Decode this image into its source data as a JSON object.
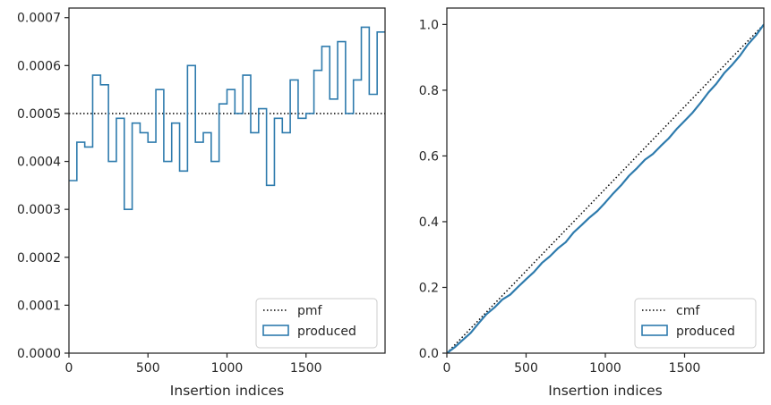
{
  "chart_data": [
    {
      "type": "step",
      "xlabel": "Insertion indices",
      "ylabel": "",
      "xlim": [
        0,
        2000
      ],
      "ylim": [
        0,
        0.00072
      ],
      "xticks": [
        "0",
        "500",
        "1000",
        "1500"
      ],
      "xtick_values": [
        0,
        500,
        1000,
        1500
      ],
      "yticks": [
        "0.0000",
        "0.0001",
        "0.0002",
        "0.0003",
        "0.0004",
        "0.0005",
        "0.0006",
        "0.0007"
      ],
      "ytick_values": [
        0,
        0.0001,
        0.0002,
        0.0003,
        0.0004,
        0.0005,
        0.0006,
        0.0007
      ],
      "legend_position": "lower-right",
      "series": [
        {
          "name": "pmf",
          "kind": "reference-line",
          "style": "dotted",
          "color": "#000000",
          "y": 0.0005
        },
        {
          "name": "produced",
          "kind": "histogram-step",
          "color": "#2e7bad",
          "bin_width": 50,
          "bin_starts": [
            0,
            50,
            100,
            150,
            200,
            250,
            300,
            350,
            400,
            450,
            500,
            550,
            600,
            650,
            700,
            750,
            800,
            850,
            900,
            950,
            1000,
            1050,
            1100,
            1150,
            1200,
            1250,
            1300,
            1350,
            1400,
            1450,
            1500,
            1550,
            1600,
            1650,
            1700,
            1750,
            1800,
            1850,
            1900,
            1950
          ],
          "values": [
            0.00036,
            0.00044,
            0.00043,
            0.00058,
            0.00056,
            0.0004,
            0.00049,
            0.0003,
            0.00048,
            0.00046,
            0.00044,
            0.00055,
            0.0004,
            0.00048,
            0.00038,
            0.0006,
            0.00044,
            0.00046,
            0.0004,
            0.00052,
            0.00055,
            0.0005,
            0.00058,
            0.00046,
            0.00051,
            0.00035,
            0.00049,
            0.00046,
            0.00057,
            0.00049,
            0.0005,
            0.00059,
            0.00064,
            0.00053,
            0.00065,
            0.0005,
            0.00057,
            0.00068,
            0.00054,
            0.00067
          ]
        }
      ]
    },
    {
      "type": "line",
      "xlabel": "Insertion indices",
      "ylabel": "",
      "xlim": [
        0,
        2000
      ],
      "ylim": [
        0,
        1.05
      ],
      "xticks": [
        "0",
        "500",
        "1000",
        "1500"
      ],
      "xtick_values": [
        0,
        500,
        1000,
        1500
      ],
      "yticks": [
        "0.0",
        "0.2",
        "0.4",
        "0.6",
        "0.8",
        "1.0"
      ],
      "ytick_values": [
        0,
        0.2,
        0.4,
        0.6,
        0.8,
        1.0
      ],
      "legend_position": "lower-right",
      "series": [
        {
          "name": "cmf",
          "kind": "reference-line",
          "style": "dotted",
          "color": "#000000",
          "x": [
            0,
            2000
          ],
          "y": [
            0,
            1.0
          ]
        },
        {
          "name": "produced",
          "kind": "cumulative-step",
          "color": "#2e7bad",
          "x": [
            0,
            50,
            100,
            150,
            200,
            250,
            300,
            350,
            400,
            450,
            500,
            550,
            600,
            650,
            700,
            750,
            800,
            850,
            900,
            950,
            1000,
            1050,
            1100,
            1150,
            1200,
            1250,
            1300,
            1350,
            1400,
            1450,
            1500,
            1550,
            1600,
            1650,
            1700,
            1750,
            1800,
            1850,
            1900,
            1950,
            2000
          ],
          "y": [
            0,
            0.018,
            0.04,
            0.0615,
            0.0905,
            0.1185,
            0.1385,
            0.163,
            0.178,
            0.202,
            0.225,
            0.247,
            0.2745,
            0.2945,
            0.3185,
            0.3375,
            0.3675,
            0.3895,
            0.4125,
            0.4325,
            0.4585,
            0.486,
            0.511,
            0.54,
            0.563,
            0.5885,
            0.606,
            0.6305,
            0.6535,
            0.682,
            0.7065,
            0.7315,
            0.761,
            0.793,
            0.8195,
            0.852,
            0.877,
            0.9055,
            0.9395,
            0.9665,
            1.0
          ]
        }
      ]
    }
  ]
}
